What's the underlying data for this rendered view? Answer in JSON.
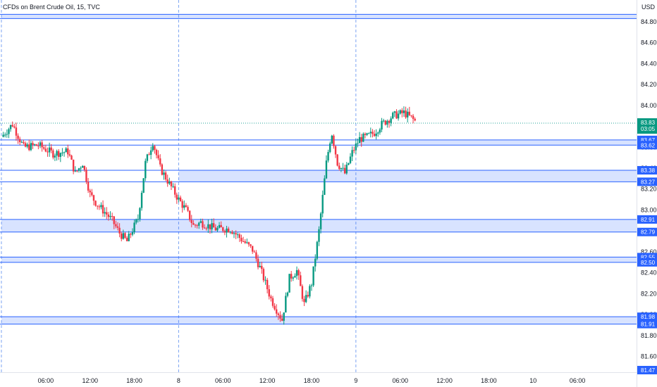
{
  "chart_data": {
    "type": "candlestick",
    "title": "CFDs on Brent Crude Oil, 15, TVC",
    "currency": "USD",
    "ylim": [
      81.47,
      84.94
    ],
    "y_ticks": [
      "84.80",
      "84.60",
      "84.40",
      "84.20",
      "84.00",
      "83.80",
      "83.60",
      "83.40",
      "83.20",
      "83.00",
      "82.80",
      "82.60",
      "82.40",
      "82.20",
      "82.00",
      "81.80",
      "81.60"
    ],
    "x_ticks": [
      {
        "label": "06:00",
        "t": 6
      },
      {
        "label": "12:00",
        "t": 12
      },
      {
        "label": "18:00",
        "t": 18
      },
      {
        "label": "8",
        "t": 24
      },
      {
        "label": "06:00",
        "t": 30
      },
      {
        "label": "12:00",
        "t": 36
      },
      {
        "label": "18:00",
        "t": 42
      },
      {
        "label": "9",
        "t": 48
      },
      {
        "label": "06:00",
        "t": 54
      },
      {
        "label": "12:00",
        "t": 60
      },
      {
        "label": "18:00",
        "t": 66
      },
      {
        "label": "10",
        "t": 72
      },
      {
        "label": "06:00",
        "t": 78
      }
    ],
    "session_breaks": [
      0,
      24,
      48
    ],
    "xlim": [
      0,
      84
    ],
    "last_price": {
      "value": "83.83",
      "countdown": "03:05"
    },
    "bottom_price": "81.47",
    "zones": [
      {
        "top": 84.87,
        "bottom": 84.83,
        "from_t": 0
      },
      {
        "top": 83.67,
        "bottom": 83.62,
        "from_t": 48.5,
        "top_label": "83.67",
        "bottom_label": "83.62"
      },
      {
        "top": 83.38,
        "bottom": 83.27,
        "from_t": 24,
        "top_label": "83.38",
        "bottom_label": "83.27"
      },
      {
        "top": 82.91,
        "bottom": 82.79,
        "from_t": 0,
        "top_label": "82.91",
        "bottom_label": "82.79"
      },
      {
        "top": 82.55,
        "bottom": 82.5,
        "from_t": 0,
        "top_label": "82.55",
        "bottom_label": "82.50"
      },
      {
        "top": 81.98,
        "bottom": 81.91,
        "from_t": 0,
        "top_label": "81.98",
        "bottom_label": "81.91"
      }
    ],
    "ohlc_keypoints": [
      [
        0,
        83.7
      ],
      [
        1.5,
        83.82
      ],
      [
        3,
        83.6
      ],
      [
        5,
        83.62
      ],
      [
        7,
        83.54
      ],
      [
        9,
        83.56
      ],
      [
        10,
        83.35
      ],
      [
        11,
        83.45
      ],
      [
        12,
        83.15
      ],
      [
        13,
        83.05
      ],
      [
        14,
        82.98
      ],
      [
        15,
        82.9
      ],
      [
        16,
        82.78
      ],
      [
        17,
        82.7
      ],
      [
        18.5,
        82.92
      ],
      [
        19.5,
        83.45
      ],
      [
        20.5,
        83.65
      ],
      [
        21.5,
        83.4
      ],
      [
        23,
        83.22
      ],
      [
        24,
        83.1
      ],
      [
        25,
        83.0
      ],
      [
        26,
        82.85
      ],
      [
        27,
        82.88
      ],
      [
        29,
        82.82
      ],
      [
        31,
        82.82
      ],
      [
        32.5,
        82.72
      ],
      [
        34,
        82.62
      ],
      [
        35,
        82.45
      ],
      [
        36.5,
        82.15
      ],
      [
        38,
        81.95
      ],
      [
        39,
        82.35
      ],
      [
        40,
        82.42
      ],
      [
        41,
        82.1
      ],
      [
        42,
        82.3
      ],
      [
        43,
        82.8
      ],
      [
        44,
        83.45
      ],
      [
        44.7,
        83.75
      ],
      [
        45.5,
        83.45
      ],
      [
        46.5,
        83.35
      ],
      [
        47.5,
        83.55
      ],
      [
        48.5,
        83.68
      ],
      [
        49.5,
        83.7
      ],
      [
        50.5,
        83.74
      ],
      [
        51.5,
        83.82
      ],
      [
        53,
        83.9
      ],
      [
        54.5,
        83.93
      ],
      [
        55.5,
        83.88
      ],
      [
        56,
        83.85
      ]
    ]
  }
}
